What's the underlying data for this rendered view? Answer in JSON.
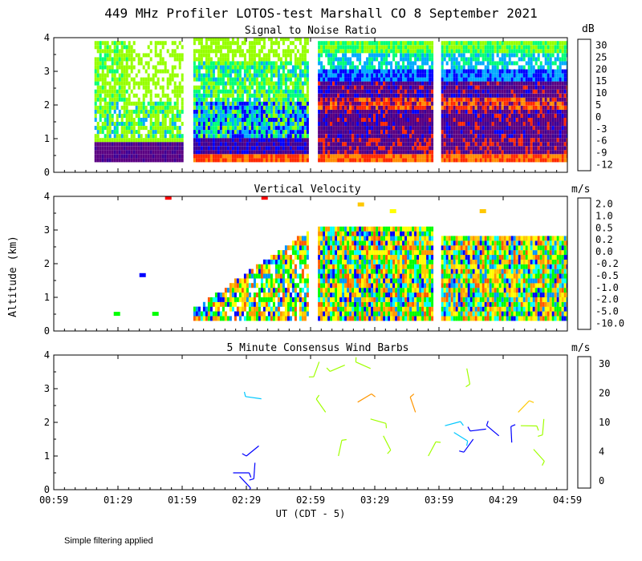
{
  "figure_title": "449 MHz Profiler LOTOS-test Marshall CO  8 September 2021",
  "footer_note": "Simple filtering applied",
  "y_axis_label": "Altitude (km)",
  "x_axis_label": "UT  (CDT - 5)",
  "chart_data": [
    {
      "type": "heatmap",
      "title": "Signal to Noise Ratio",
      "colorbar_unit": "dB",
      "colorbar_labels": [
        "30",
        "25",
        "20",
        "15",
        "10",
        "5",
        "0",
        "-3",
        "-6",
        "-9",
        "-12"
      ],
      "colorbar_colors": [
        "#ffffff",
        "#ffff00",
        "#ffc800",
        "#ff8c00",
        "#ff2800",
        "#5a0082",
        "#3c0096",
        "#0000ff",
        "#00aaff",
        "#00ff78",
        "#96ff00"
      ],
      "ylim": [
        0,
        4
      ],
      "yticks": [
        "0",
        "1",
        "2",
        "3",
        "4"
      ],
      "xticks": [
        "00:59",
        "01:29",
        "01:59",
        "02:29",
        "02:59",
        "03:29",
        "03:59",
        "04:29",
        "04:59"
      ],
      "data_blocks_hours": [
        [
          1.3,
          1.99
        ],
        [
          2.07,
          2.96
        ],
        [
          3.04,
          3.93
        ],
        [
          4.0,
          4.98
        ]
      ]
    },
    {
      "type": "heatmap",
      "title": "Vertical Velocity",
      "colorbar_unit": "m/s",
      "colorbar_labels": [
        "2.0",
        "1.0",
        "0.5",
        "0.2",
        "0.0",
        "-0.2",
        "-0.5",
        "-1.0",
        "-2.0",
        "-5.0",
        "-10.0"
      ],
      "colorbar_colors": [
        "#ff0000",
        "#ff5a00",
        "#ff9600",
        "#ffc800",
        "#ffff00",
        "#00ff00",
        "#00ffff",
        "#0096ff",
        "#0000ff",
        "#6400c8",
        "#3c0050"
      ],
      "ylim": [
        0,
        4
      ],
      "yticks": [
        "0",
        "1",
        "2",
        "3",
        "4"
      ],
      "xticks": [
        "00:59",
        "01:29",
        "01:59",
        "02:29",
        "02:59",
        "03:29",
        "03:59",
        "04:29",
        "04:59"
      ]
    },
    {
      "type": "scatter",
      "title": "5 Minute Consensus Wind Barbs",
      "colorbar_unit": "m/s",
      "colorbar_labels": [
        "30",
        "20",
        "10",
        "4",
        "0"
      ],
      "colorbar_colors": [
        "#ff0000",
        "#ff5000",
        "#ff9600",
        "#ffc800",
        "#a0ff00",
        "#00ff50",
        "#00c8ff",
        "#0000ff",
        "#3c0080"
      ],
      "ylim": [
        0,
        4
      ],
      "yticks": [
        "0",
        "1",
        "2",
        "3",
        "4"
      ],
      "xticks": [
        "00:59",
        "01:29",
        "01:59",
        "02:29",
        "02:59",
        "03:29",
        "03:59",
        "04:29",
        "04:59"
      ],
      "barbs": [
        {
          "t": 2.38,
          "alt": 0.5,
          "speed": 2
        },
        {
          "t": 2.43,
          "alt": 0.4,
          "speed": 2
        },
        {
          "t": 2.55,
          "alt": 0.8,
          "speed": 1
        },
        {
          "t": 2.58,
          "alt": 1.3,
          "speed": 1
        },
        {
          "t": 2.6,
          "alt": 2.7,
          "speed": 6
        },
        {
          "t": 3.1,
          "alt": 2.3,
          "speed": 11
        },
        {
          "t": 3.2,
          "alt": 1.0,
          "speed": 11
        },
        {
          "t": 3.35,
          "alt": 2.6,
          "speed": 20
        },
        {
          "t": 3.45,
          "alt": 2.1,
          "speed": 12
        },
        {
          "t": 3.55,
          "alt": 1.6,
          "speed": 14
        },
        {
          "t": 3.05,
          "alt": 3.8,
          "speed": 14
        },
        {
          "t": 3.25,
          "alt": 3.7,
          "speed": 14
        },
        {
          "t": 3.45,
          "alt": 3.6,
          "speed": 14
        },
        {
          "t": 3.8,
          "alt": 2.3,
          "speed": 21
        },
        {
          "t": 3.9,
          "alt": 1.0,
          "speed": 11
        },
        {
          "t": 4.03,
          "alt": 1.9,
          "speed": 4
        },
        {
          "t": 4.1,
          "alt": 1.7,
          "speed": 5
        },
        {
          "t": 4.2,
          "alt": 3.6,
          "speed": 12
        },
        {
          "t": 4.25,
          "alt": 1.5,
          "speed": 3
        },
        {
          "t": 4.35,
          "alt": 1.8,
          "speed": 3
        },
        {
          "t": 4.45,
          "alt": 1.6,
          "speed": 2
        },
        {
          "t": 4.55,
          "alt": 1.4,
          "speed": 2
        },
        {
          "t": 4.6,
          "alt": 2.3,
          "speed": 19
        },
        {
          "t": 4.62,
          "alt": 1.9,
          "speed": 10
        },
        {
          "t": 4.72,
          "alt": 1.2,
          "speed": 12
        },
        {
          "t": 4.8,
          "alt": 2.1,
          "speed": 10
        }
      ]
    }
  ]
}
